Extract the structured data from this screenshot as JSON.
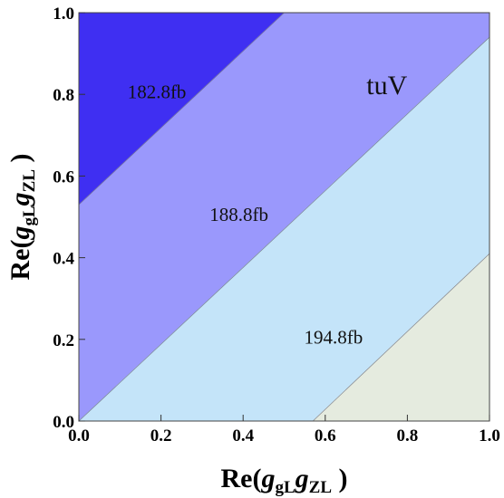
{
  "chart_data": {
    "type": "contour",
    "xlabel": {
      "prefix": "Re(",
      "g1": "g",
      "g1sub": "gL",
      "g2": "g",
      "g2sub": "ZL",
      "suffix": " )"
    },
    "ylabel": {
      "prefix": "Re(",
      "g1": "g",
      "g1sub": "gL",
      "g2": "g",
      "g2sub": "ZL",
      "suffix": " )"
    },
    "xlim": [
      0.0,
      1.0
    ],
    "ylim": [
      0.0,
      1.0
    ],
    "xticks": [
      "0.0",
      "0.2",
      "0.4",
      "0.6",
      "0.8",
      "1.0"
    ],
    "yticks": [
      "0.0",
      "0.2",
      "0.4",
      "0.6",
      "0.8",
      "1.0"
    ],
    "annotation": "tuV",
    "contours": [
      {
        "label": "182.8fb",
        "line_points": [
          [
            0.0,
            0.53
          ],
          [
            0.5,
            1.0
          ]
        ],
        "label_at": [
          0.19,
          0.79
        ]
      },
      {
        "label": "188.8fb",
        "line_points": [
          [
            0.0,
            0.0
          ],
          [
            1.0,
            0.94
          ]
        ],
        "label_at": [
          0.39,
          0.49
        ]
      },
      {
        "label": "194.8fb",
        "line_points": [
          [
            0.57,
            0.0
          ],
          [
            1.0,
            0.41
          ]
        ],
        "label_at": [
          0.62,
          0.19
        ]
      }
    ],
    "regions": [
      {
        "color": "#3f2ff2"
      },
      {
        "color": "#9a98fc"
      },
      {
        "color": "#c4e4f9"
      },
      {
        "color": "#e5ebdf"
      }
    ],
    "grid": false
  }
}
